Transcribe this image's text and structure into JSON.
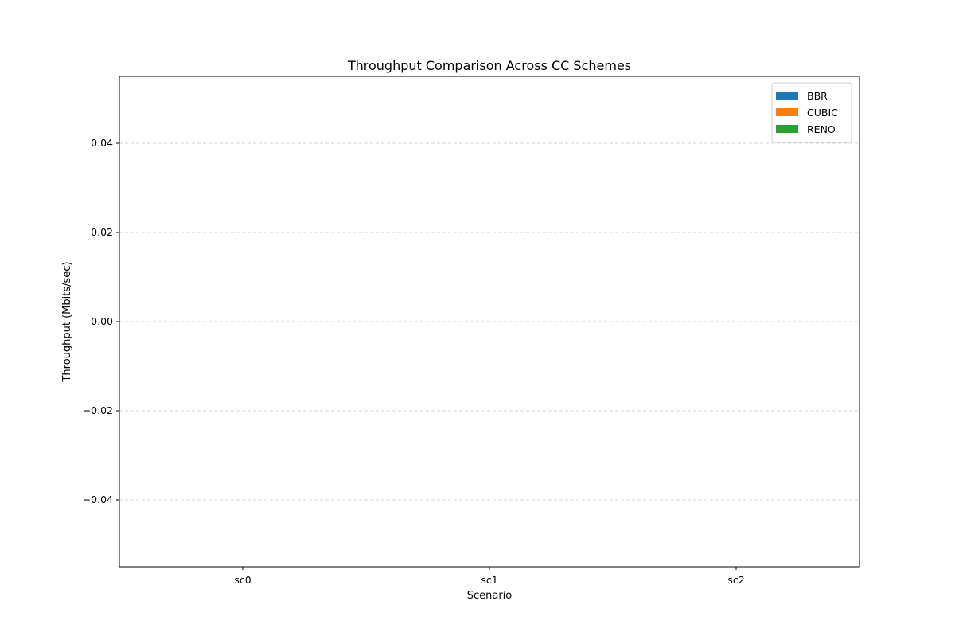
{
  "chart_data": {
    "type": "bar",
    "title": "Throughput Comparison Across CC Schemes",
    "xlabel": "Scenario",
    "ylabel": "Throughput (Mbits/sec)",
    "categories": [
      "sc0",
      "sc1",
      "sc2"
    ],
    "series": [
      {
        "name": "BBR",
        "color": "#1f77b4",
        "values": [
          0,
          0,
          0
        ]
      },
      {
        "name": "CUBIC",
        "color": "#ff7f0e",
        "values": [
          0,
          0,
          0
        ]
      },
      {
        "name": "RENO",
        "color": "#2ca02c",
        "values": [
          0,
          0,
          0
        ]
      }
    ],
    "ylim": [
      -0.055,
      0.055
    ],
    "yticks": [
      {
        "value": -0.04,
        "label": "−0.04"
      },
      {
        "value": -0.02,
        "label": "−0.02"
      },
      {
        "value": 0.0,
        "label": "0.00"
      },
      {
        "value": 0.02,
        "label": "0.02"
      },
      {
        "value": 0.04,
        "label": "0.04"
      }
    ],
    "grid": {
      "y": true,
      "x": false,
      "style": "dashed",
      "color": "#c8c8c8"
    },
    "legend": {
      "placement": "top-right"
    }
  }
}
